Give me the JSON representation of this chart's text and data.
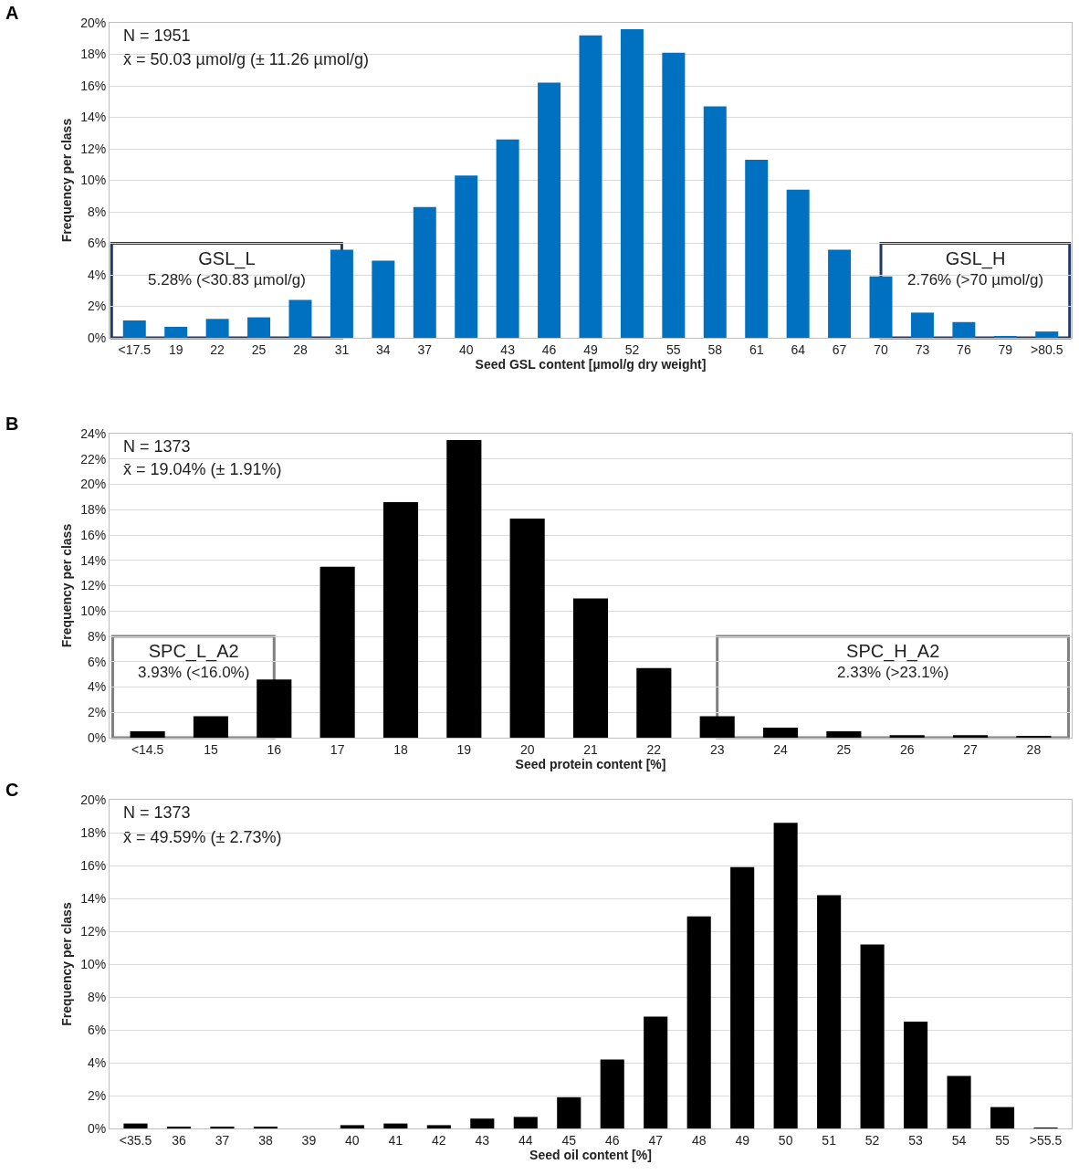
{
  "chart_data": [
    {
      "type": "bar",
      "xlabel": "Seed GSL content [µmol/g dry weight]",
      "ylabel": "Frequency per class",
      "categories": [
        "<17.5",
        "19",
        "22",
        "25",
        "28",
        "31",
        "34",
        "37",
        "40",
        "43",
        "46",
        "49",
        "52",
        "55",
        "58",
        "61",
        "64",
        "67",
        "70",
        "73",
        "76",
        "79",
        ">80.5"
      ],
      "values": [
        1.1,
        0.7,
        1.2,
        1.3,
        2.4,
        5.6,
        4.9,
        8.3,
        10.3,
        12.6,
        16.2,
        19.2,
        19.6,
        18.1,
        14.7,
        11.3,
        9.4,
        5.6,
        3.9,
        1.6,
        1.0,
        0.1,
        0.4
      ],
      "color": "#0070c0",
      "ylim": [
        0,
        20
      ],
      "yticks": [
        {
          "value": 0,
          "label": "0%"
        },
        {
          "value": 2,
          "label": "2%"
        },
        {
          "value": 4,
          "label": "4%"
        },
        {
          "value": 6,
          "label": "6%"
        },
        {
          "value": 8,
          "label": "8%"
        },
        {
          "value": 10,
          "label": "10%"
        },
        {
          "value": 12,
          "label": "12%"
        },
        {
          "value": 14,
          "label": "14%"
        },
        {
          "value": 16,
          "label": "16%"
        },
        {
          "value": 18,
          "label": "18%"
        },
        {
          "value": 20,
          "label": "20%"
        }
      ],
      "grid": "y",
      "annotations": [
        "A",
        "N = 1951",
        "x̄ = 50.03 µmol/g (± 11.26 µmol/g)",
        "GSL_L\n5.28% (<30.83 µmol/g)",
        "GSL_H\n2.76% (>70 µmol/g)"
      ]
    },
    {
      "type": "bar",
      "xlabel": "Seed protein content [%]",
      "ylabel": "Frequency per class",
      "categories": [
        "<14.5",
        "15",
        "16",
        "17",
        "18",
        "19",
        "20",
        "21",
        "22",
        "23",
        "24",
        "25",
        "26",
        "27",
        "28"
      ],
      "values": [
        0.5,
        1.7,
        4.6,
        13.5,
        18.6,
        23.5,
        17.3,
        11.0,
        5.5,
        1.7,
        0.8,
        0.5,
        0.2,
        0.2,
        0.1
      ],
      "color": "#000000",
      "ylim": [
        0,
        24
      ],
      "yticks": [
        {
          "value": 0,
          "label": "0%"
        },
        {
          "value": 2,
          "label": "2%"
        },
        {
          "value": 4,
          "label": "4%"
        },
        {
          "value": 6,
          "label": "6%"
        },
        {
          "value": 8,
          "label": "8%"
        },
        {
          "value": 10,
          "label": "10%"
        },
        {
          "value": 12,
          "label": "12%"
        },
        {
          "value": 14,
          "label": "14%"
        },
        {
          "value": 16,
          "label": "16%"
        },
        {
          "value": 18,
          "label": "18%"
        },
        {
          "value": 20,
          "label": "20%"
        },
        {
          "value": 22,
          "label": "22%"
        },
        {
          "value": 24,
          "label": "24%"
        }
      ],
      "grid": "y",
      "annotations": [
        "B",
        "N = 1373",
        "x̄ = 19.04% (± 1.91%)",
        "SPC_L_A2\n3.93% (<16.0%)",
        "SPC_H_A2\n2.33% (>23.1%)"
      ]
    },
    {
      "type": "bar",
      "xlabel": "Seed oil content [%]",
      "ylabel": "Frequency per class",
      "categories": [
        "<35.5",
        "36",
        "37",
        "38",
        "39",
        "40",
        "41",
        "42",
        "43",
        "44",
        "45",
        "46",
        "47",
        "48",
        "49",
        "50",
        "51",
        "52",
        "53",
        "54",
        "55",
        ">55.5"
      ],
      "values": [
        0.3,
        0.1,
        0.1,
        0.1,
        0,
        0.2,
        0.3,
        0.2,
        0.6,
        0.7,
        1.9,
        4.2,
        6.8,
        12.9,
        15.9,
        18.6,
        14.2,
        11.2,
        6.5,
        3.2,
        1.3,
        0.05
      ],
      "color": "#000000",
      "ylim": [
        0,
        20
      ],
      "yticks": [
        {
          "value": 0,
          "label": "0%"
        },
        {
          "value": 2,
          "label": "2%"
        },
        {
          "value": 4,
          "label": "4%"
        },
        {
          "value": 6,
          "label": "6%"
        },
        {
          "value": 8,
          "label": "8%"
        },
        {
          "value": 10,
          "label": "10%"
        },
        {
          "value": 12,
          "label": "12%"
        },
        {
          "value": 14,
          "label": "14%"
        },
        {
          "value": 16,
          "label": "16%"
        },
        {
          "value": 18,
          "label": "18%"
        },
        {
          "value": 20,
          "label": "20%"
        }
      ],
      "grid": "y",
      "annotations": [
        "C",
        "N = 1373",
        "x̄ = 49.59% (± 2.73%)"
      ]
    }
  ]
}
